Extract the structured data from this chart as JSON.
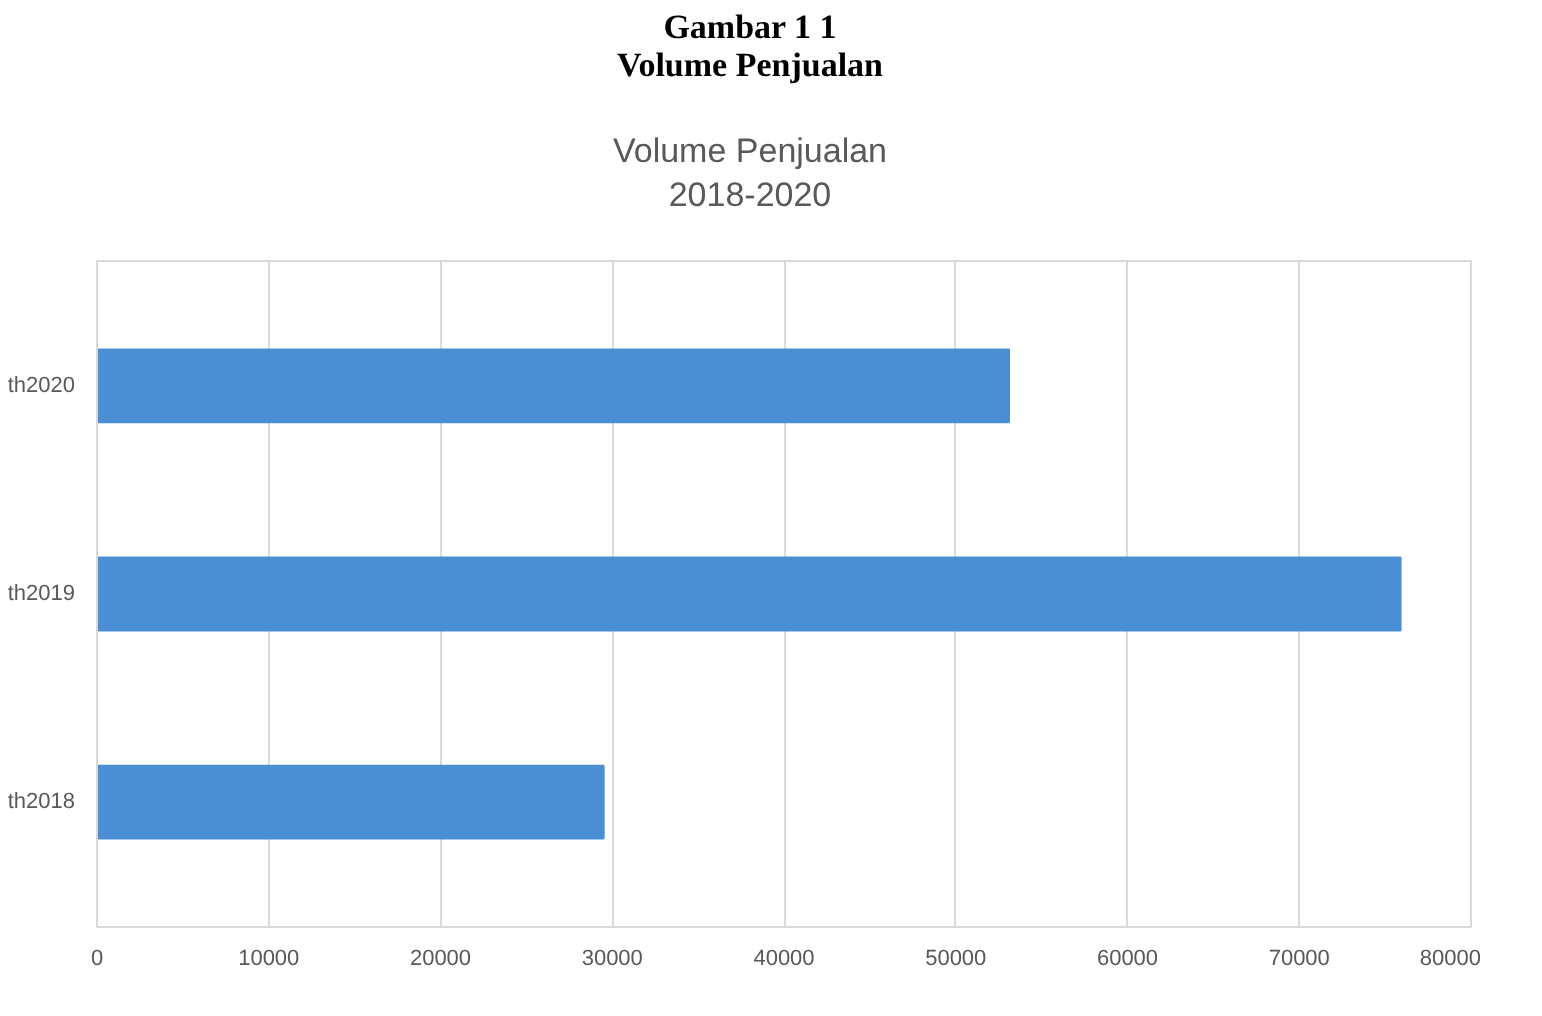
{
  "chart_data": {
    "type": "bar",
    "orientation": "horizontal",
    "title": "Gambar 1 1\nVolume Penjualan",
    "subtitle": "Volume Penjualan\n2018-2020",
    "categories": [
      "th2020",
      "th2019",
      "th2018"
    ],
    "values": [
      53100,
      75900,
      29500
    ],
    "color": "#4a8ed4",
    "xlim": [
      0,
      80000
    ],
    "xticks": [
      0,
      10000,
      20000,
      30000,
      40000,
      50000,
      60000,
      70000,
      80000
    ],
    "grid": "x"
  }
}
